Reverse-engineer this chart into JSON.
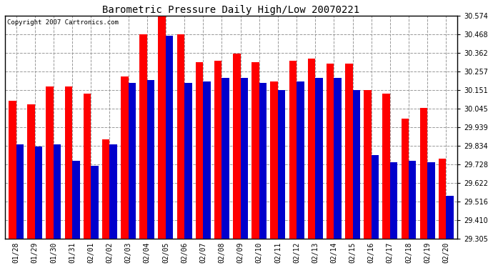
{
  "title": "Barometric Pressure Daily High/Low 20070221",
  "copyright": "Copyright 2007 Cartronics.com",
  "dates": [
    "01/28",
    "01/29",
    "01/30",
    "01/31",
    "02/01",
    "02/02",
    "02/03",
    "02/04",
    "02/05",
    "02/06",
    "02/07",
    "02/08",
    "02/09",
    "02/10",
    "02/11",
    "02/12",
    "02/13",
    "02/14",
    "02/15",
    "02/16",
    "02/17",
    "02/18",
    "02/19",
    "02/20"
  ],
  "highs": [
    30.09,
    30.07,
    30.17,
    30.17,
    30.13,
    29.87,
    30.23,
    30.47,
    30.57,
    30.47,
    30.31,
    30.32,
    30.36,
    30.31,
    30.2,
    30.32,
    30.33,
    30.3,
    30.3,
    30.15,
    30.13,
    29.99,
    30.05,
    29.76
  ],
  "lows": [
    29.84,
    29.83,
    29.84,
    29.75,
    29.72,
    29.84,
    30.19,
    30.21,
    30.46,
    30.19,
    30.2,
    30.22,
    30.22,
    30.19,
    30.15,
    30.2,
    30.22,
    30.22,
    30.15,
    29.78,
    29.74,
    29.75,
    29.74,
    29.55
  ],
  "high_color": "#ff0000",
  "low_color": "#0000cc",
  "bg_color": "#ffffff",
  "grid_color": "#999999",
  "ymin": 29.305,
  "ymax": 30.574,
  "yticks": [
    29.305,
    29.41,
    29.516,
    29.622,
    29.728,
    29.834,
    29.939,
    30.045,
    30.151,
    30.257,
    30.362,
    30.468,
    30.574
  ]
}
